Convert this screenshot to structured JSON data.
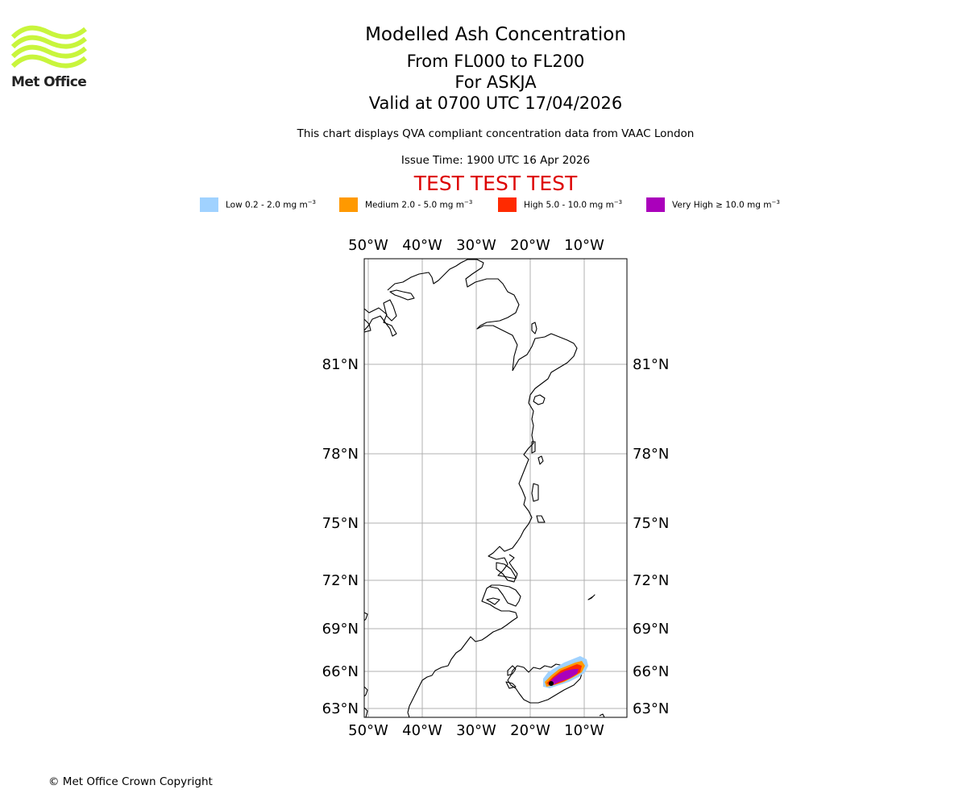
{
  "logo": {
    "name": "Met Office",
    "color": "#c8f53c"
  },
  "title": {
    "line1": "Modelled Ash Concentration",
    "line2": "From FL000 to FL200",
    "line3": "For ASKJA",
    "line4": "Valid at 0700 UTC 17/04/2026"
  },
  "subtitle": "This chart displays QVA compliant concentration data from VAAC London",
  "issue_time": "Issue Time: 1900 UTC 16 Apr 2026",
  "test_banner": {
    "text": "TEST TEST TEST",
    "color": "#dd0000"
  },
  "legend": [
    {
      "label": "Low 0.2 - 2.0 mg m",
      "unit_exp": "−3",
      "color": "#a0d2ff"
    },
    {
      "label": "Medium 2.0 - 5.0 mg m",
      "unit_exp": "−3",
      "color": "#ff9900"
    },
    {
      "label": "High 5.0 - 10.0 mg m",
      "unit_exp": "−3",
      "color": "#ff2a00"
    },
    {
      "label": "Very High  ≥  10.0 mg m",
      "unit_exp": "−3",
      "color": "#aa00bb"
    }
  ],
  "map": {
    "top_longitude_labels": [
      "50°W",
      "40°W",
      "30°W",
      "20°W",
      "10°W"
    ],
    "bottom_longitude_labels": [
      "50°W",
      "40°W",
      "30°W",
      "20°W",
      "10°W"
    ],
    "left_latitude_labels": [
      "81°N",
      "78°N",
      "75°N",
      "72°N",
      "69°N",
      "66°N",
      "63°N"
    ],
    "right_latitude_labels": [
      "81°N",
      "78°N",
      "75°N",
      "72°N",
      "69°N",
      "66°N",
      "63°N"
    ],
    "volcano": "ASKJA"
  },
  "copyright": "© Met Office Crown Copyright"
}
